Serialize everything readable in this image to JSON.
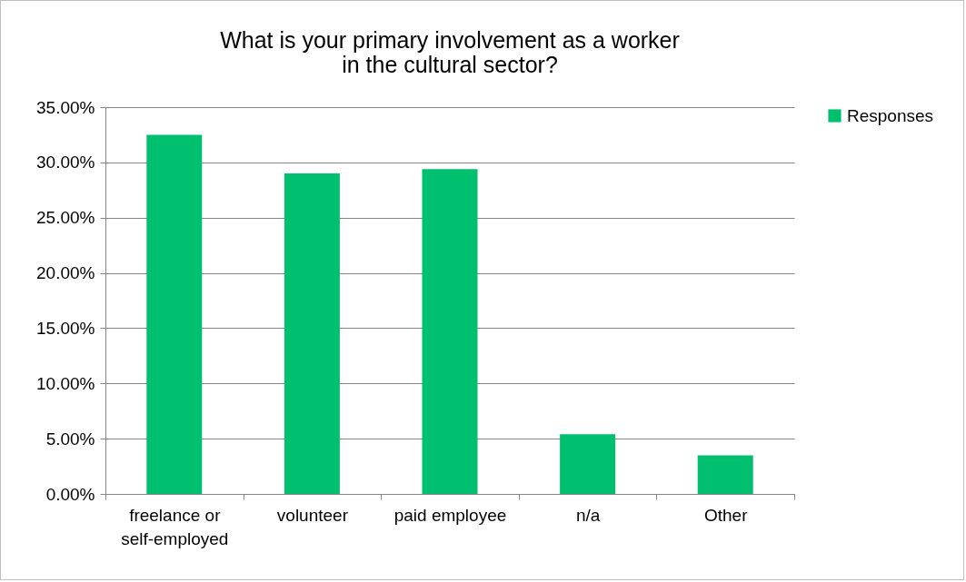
{
  "chart_data": {
    "type": "bar",
    "title": "What is your primary involvement as a worker in the cultural sector?",
    "categories": [
      "freelance or self-employed",
      "volunteer",
      "paid employee",
      "n/a",
      "Other"
    ],
    "series": [
      {
        "name": "Responses",
        "color": "#00c070",
        "values": [
          32.5,
          29.0,
          29.4,
          5.4,
          3.5
        ]
      }
    ],
    "ylim": [
      0,
      35
    ],
    "yticks": [
      {
        "value": 0,
        "label": "0.00%"
      },
      {
        "value": 5,
        "label": "5.00%"
      },
      {
        "value": 10,
        "label": "10.00%"
      },
      {
        "value": 15,
        "label": "15.00%"
      },
      {
        "value": 20,
        "label": "20.00%"
      },
      {
        "value": 25,
        "label": "25.00%"
      },
      {
        "value": 30,
        "label": "30.00%"
      },
      {
        "value": 35,
        "label": "35.00%"
      }
    ],
    "grid": "y",
    "legend": "right"
  }
}
